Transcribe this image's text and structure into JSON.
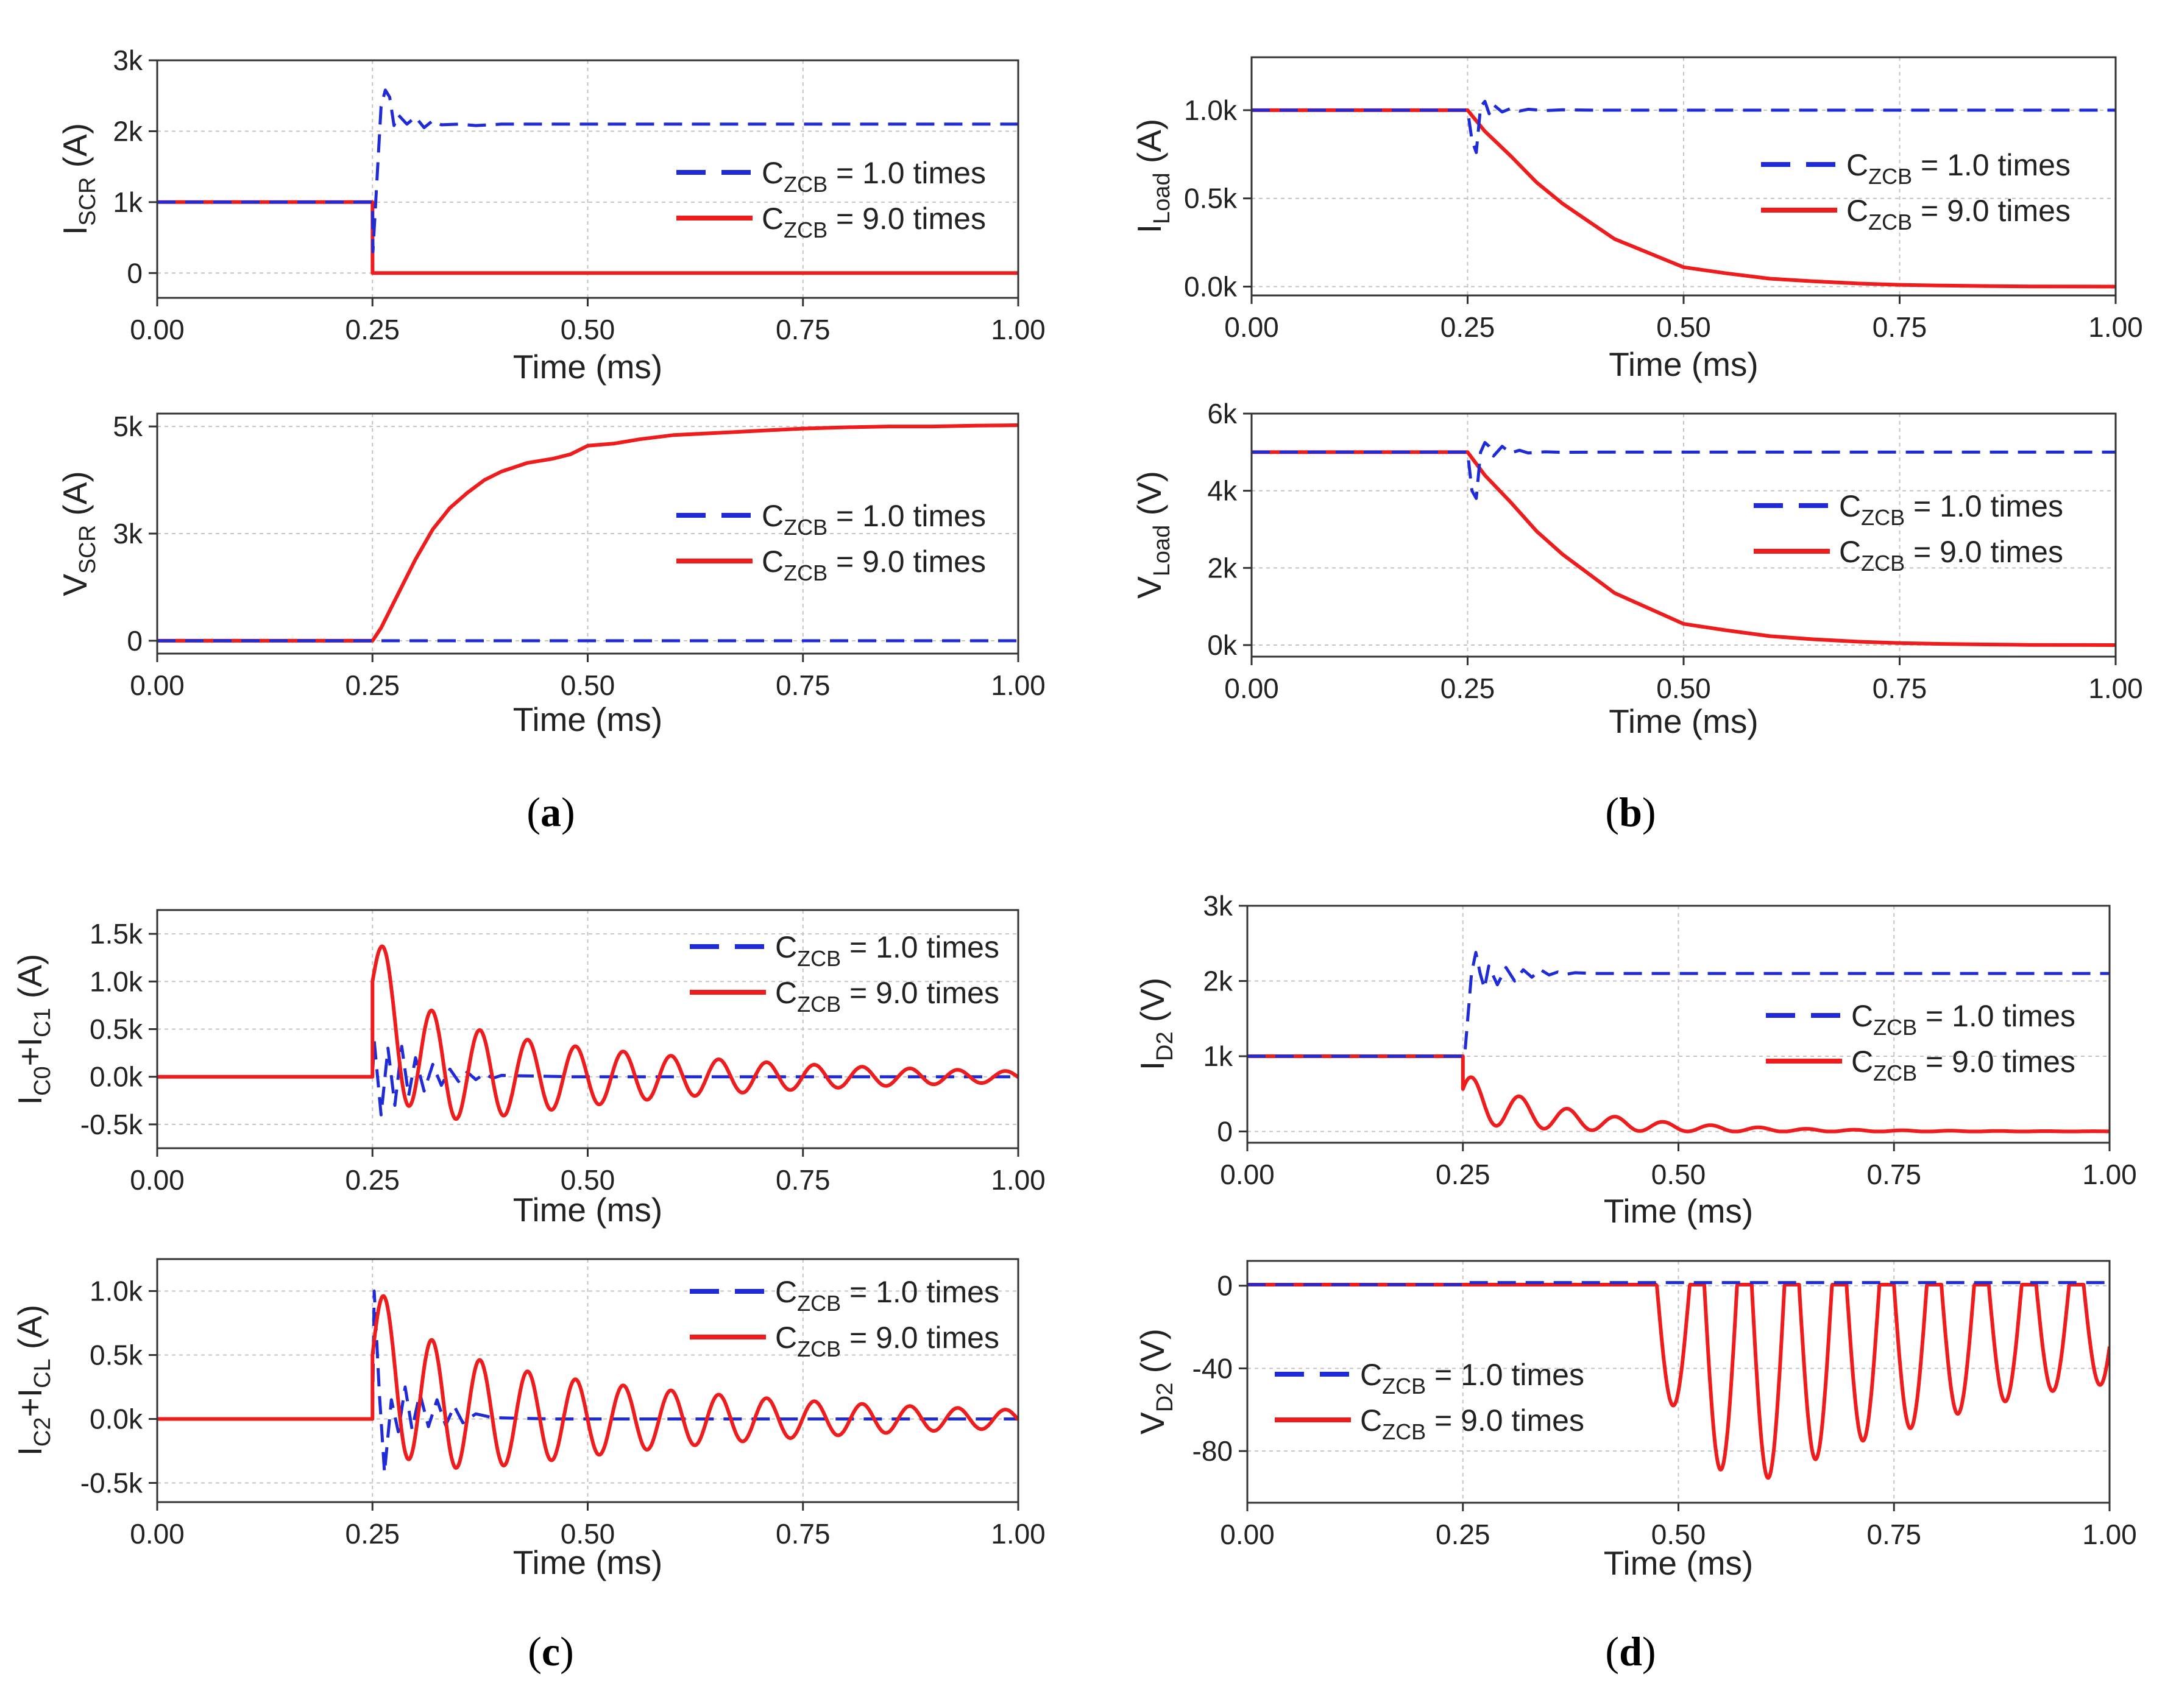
{
  "legend_text": {
    "prefix": "C",
    "subscript": "ZCB",
    "blue": " = 1.0 times",
    "red": " = 9.0 times"
  },
  "colors": {
    "blue": "#1f2bd6",
    "red": "#ee1c1c",
    "grid": "#c4c4c4",
    "axis": "#333333"
  },
  "panel_labels": [
    "a",
    "b",
    "c",
    "d"
  ],
  "chart_data": [
    {
      "type": "line",
      "panel": "a",
      "title": "",
      "xlabel": "Time (ms)",
      "ylabel": {
        "main": "I",
        "sub": "SCR",
        "suffix": " (A)"
      },
      "xlim": [
        0,
        1.0
      ],
      "ylim": [
        -350,
        3000
      ],
      "xticks": [
        0,
        0.25,
        0.5,
        0.75,
        1.0
      ],
      "xticklabels": [
        "0.00",
        "0.25",
        "0.50",
        "0.75",
        "1.00"
      ],
      "yticks": [
        0,
        1000,
        2000,
        3000
      ],
      "yticklabels": [
        "0",
        "1k",
        "2k",
        "3k"
      ],
      "legend": "right",
      "series": [
        {
          "style": "dashed",
          "color": "blue",
          "x": [
            0,
            0.25,
            0.2505,
            0.26,
            0.265,
            0.27,
            0.275,
            0.28,
            0.29,
            0.3,
            0.31,
            0.32,
            0.33,
            0.35,
            0.37,
            0.4,
            0.45,
            1.0
          ],
          "y": [
            1000,
            1000,
            300,
            2350,
            2580,
            2480,
            2080,
            2230,
            2100,
            2200,
            2050,
            2150,
            2090,
            2100,
            2080,
            2100,
            2100,
            2100
          ]
        },
        {
          "style": "solid",
          "color": "red",
          "x": [
            0,
            0.25,
            0.2501,
            1.0
          ],
          "y": [
            1000,
            1000,
            0,
            0
          ]
        }
      ]
    },
    {
      "type": "line",
      "panel": "a2",
      "title": "",
      "xlabel": "Time (ms)",
      "ylabel": {
        "main": "V",
        "sub": "SCR",
        "suffix": " (A)"
      },
      "xlim": [
        0,
        1.0
      ],
      "ylim": [
        -300,
        5300
      ],
      "xticks": [
        0,
        0.25,
        0.5,
        0.75,
        1.0
      ],
      "xticklabels": [
        "0.00",
        "0.25",
        "0.50",
        "0.75",
        "1.00"
      ],
      "yticks": [
        0,
        2500,
        5000
      ],
      "yticklabels": [
        "0",
        "3k",
        "5k"
      ],
      "legend": "right",
      "series": [
        {
          "style": "dashed",
          "color": "blue",
          "x": [
            0,
            1.0
          ],
          "y": [
            0,
            0
          ]
        },
        {
          "style": "solid",
          "color": "red",
          "x": [
            0,
            0.25,
            0.26,
            0.28,
            0.3,
            0.32,
            0.34,
            0.36,
            0.38,
            0.4,
            0.43,
            0.46,
            0.48,
            0.5,
            0.53,
            0.56,
            0.6,
            0.65,
            0.7,
            0.75,
            0.8,
            0.85,
            0.9,
            0.95,
            1.0
          ],
          "y": [
            0,
            0,
            300,
            1100,
            1900,
            2600,
            3100,
            3450,
            3750,
            3950,
            4150,
            4250,
            4350,
            4550,
            4600,
            4700,
            4800,
            4850,
            4900,
            4950,
            4980,
            5000,
            5000,
            5020,
            5030
          ]
        }
      ]
    },
    {
      "type": "line",
      "panel": "b",
      "title": "",
      "xlabel": "Time (ms)",
      "ylabel": {
        "main": "I",
        "sub": "Load",
        "suffix": " (A)"
      },
      "xlim": [
        0,
        1.0
      ],
      "ylim": [
        -50,
        1300
      ],
      "xticks": [
        0,
        0.25,
        0.5,
        0.75,
        1.0
      ],
      "xticklabels": [
        "0.00",
        "0.25",
        "0.50",
        "0.75",
        "1.00"
      ],
      "yticks": [
        0,
        500,
        1000
      ],
      "yticklabels": [
        "0.0k",
        "0.5k",
        "1.0k"
      ],
      "legend": "right",
      "series": [
        {
          "style": "dashed",
          "color": "blue",
          "x": [
            0,
            0.25,
            0.255,
            0.26,
            0.265,
            0.27,
            0.275,
            0.28,
            0.29,
            0.3,
            0.31,
            0.32,
            0.34,
            0.36,
            0.4,
            1.0
          ],
          "y": [
            1000,
            1000,
            830,
            760,
            1020,
            1050,
            980,
            1030,
            990,
            1010,
            995,
            1005,
            998,
            1002,
            1000,
            1000
          ]
        },
        {
          "style": "solid",
          "color": "red",
          "x": [
            0,
            0.25,
            0.27,
            0.3,
            0.33,
            0.36,
            0.39,
            0.42,
            0.45,
            0.48,
            0.5,
            0.55,
            0.6,
            0.65,
            0.7,
            0.75,
            0.8,
            0.85,
            0.9,
            1.0
          ],
          "y": [
            1000,
            1000,
            880,
            740,
            590,
            470,
            370,
            270,
            210,
            150,
            110,
            75,
            45,
            30,
            18,
            10,
            6,
            3,
            1,
            0
          ]
        }
      ]
    },
    {
      "type": "line",
      "panel": "b2",
      "title": "",
      "xlabel": "Time (ms)",
      "ylabel": {
        "main": "V",
        "sub": "Load",
        "suffix": " (V)"
      },
      "xlim": [
        0,
        1.0
      ],
      "ylim": [
        -300,
        6000
      ],
      "xticks": [
        0,
        0.25,
        0.5,
        0.75,
        1.0
      ],
      "xticklabels": [
        "0.00",
        "0.25",
        "0.50",
        "0.75",
        "1.00"
      ],
      "yticks": [
        0,
        2000,
        4000,
        6000
      ],
      "yticklabels": [
        "0k",
        "2k",
        "4k",
        "6k"
      ],
      "legend": "right",
      "series": [
        {
          "style": "dashed",
          "color": "blue",
          "x": [
            0,
            0.25,
            0.255,
            0.26,
            0.265,
            0.27,
            0.275,
            0.28,
            0.29,
            0.3,
            0.31,
            0.32,
            0.34,
            0.36,
            0.4,
            1.0
          ],
          "y": [
            5000,
            5000,
            4000,
            3800,
            5000,
            5250,
            5150,
            4900,
            5150,
            4980,
            5050,
            4980,
            5010,
            4995,
            5000,
            5000
          ]
        },
        {
          "style": "solid",
          "color": "red",
          "x": [
            0,
            0.25,
            0.27,
            0.3,
            0.33,
            0.36,
            0.39,
            0.42,
            0.45,
            0.48,
            0.5,
            0.55,
            0.6,
            0.65,
            0.7,
            0.75,
            0.8,
            0.85,
            0.9,
            1.0
          ],
          "y": [
            5000,
            5000,
            4400,
            3700,
            2950,
            2350,
            1850,
            1350,
            1050,
            750,
            550,
            380,
            230,
            150,
            90,
            50,
            30,
            15,
            5,
            0
          ]
        }
      ]
    },
    {
      "type": "line",
      "panel": "c",
      "title": "",
      "xlabel": "Time (ms)",
      "ylabel": {
        "main": "I",
        "sub": "C0",
        "mid": "+I",
        "sub2": "C1",
        "suffix": " (A)"
      },
      "xlim": [
        0,
        1.0
      ],
      "ylim": [
        -750,
        1750
      ],
      "xticks": [
        0,
        0.25,
        0.5,
        0.75,
        1.0
      ],
      "xticklabels": [
        "0.00",
        "0.25",
        "0.50",
        "0.75",
        "1.00"
      ],
      "yticks": [
        -500,
        0,
        500,
        1000,
        1500
      ],
      "yticklabels": [
        "-0.5k",
        "0.0k",
        "0.5k",
        "1.0k",
        "1.5k"
      ],
      "legend": "top-right",
      "series": [
        {
          "style": "dashed",
          "color": "blue",
          "x": [
            0,
            0.25,
            0.252,
            0.26,
            0.268,
            0.276,
            0.284,
            0.292,
            0.3,
            0.31,
            0.32,
            0.33,
            0.34,
            0.35,
            0.36,
            0.37,
            0.38,
            0.39,
            0.4,
            0.42,
            0.45,
            0.48,
            0.52,
            0.56,
            0.6,
            1.0
          ],
          "y": [
            0,
            0,
            380,
            -400,
            300,
            -300,
            320,
            -200,
            200,
            -150,
            130,
            -90,
            80,
            -50,
            50,
            -30,
            30,
            -15,
            15,
            10,
            5,
            0,
            0,
            0,
            0,
            0
          ]
        },
        {
          "style": "solid",
          "color": "red",
          "generator": "damped-osc",
          "t0": 0.25,
          "dc": 1000,
          "dc_tau": 0.035,
          "amp": 700,
          "amp_tau": 0.3,
          "period": 0.0555,
          "phase": 0.0
        }
      ]
    },
    {
      "type": "line",
      "panel": "c2",
      "title": "",
      "xlabel": "Time (ms)",
      "ylabel": {
        "main": "I",
        "sub": "C2",
        "mid": "+I",
        "sub2": "CL",
        "suffix": " (A)"
      },
      "xlim": [
        0,
        1.0
      ],
      "ylim": [
        -650,
        1250
      ],
      "xticks": [
        0,
        0.25,
        0.5,
        0.75,
        1.0
      ],
      "xticklabels": [
        "0.00",
        "0.25",
        "0.50",
        "0.75",
        "1.00"
      ],
      "yticks": [
        -500,
        0,
        500,
        1000
      ],
      "yticklabels": [
        "-0.5k",
        "0.0k",
        "0.5k",
        "1.0k"
      ],
      "legend": "top-right",
      "series": [
        {
          "style": "dashed",
          "color": "blue",
          "x": [
            0,
            0.25,
            0.252,
            0.258,
            0.264,
            0.272,
            0.28,
            0.288,
            0.296,
            0.305,
            0.315,
            0.325,
            0.335,
            0.345,
            0.355,
            0.37,
            0.39,
            0.42,
            0.46,
            0.5,
            1.0
          ],
          "y": [
            0,
            0,
            1000,
            200,
            -420,
            150,
            -100,
            250,
            -80,
            200,
            -60,
            150,
            -50,
            100,
            -30,
            40,
            10,
            5,
            0,
            0,
            0
          ]
        },
        {
          "style": "solid",
          "color": "red",
          "generator": "damped-osc",
          "t0": 0.25,
          "dc": 500,
          "dc_tau": 0.05,
          "amp": 600,
          "amp_tau": 0.35,
          "period": 0.0555,
          "phase": 0.0
        }
      ]
    },
    {
      "type": "line",
      "panel": "d",
      "title": "",
      "xlabel": "Time (ms)",
      "ylabel": {
        "main": "I",
        "sub": "D2",
        "suffix": " (V)"
      },
      "xlim": [
        0,
        1.0
      ],
      "ylim": [
        -150,
        3000
      ],
      "xticks": [
        0,
        0.25,
        0.5,
        0.75,
        1.0
      ],
      "xticklabels": [
        "0.00",
        "0.25",
        "0.50",
        "0.75",
        "1.00"
      ],
      "yticks": [
        0,
        1000,
        2000,
        3000
      ],
      "yticklabels": [
        "0",
        "1k",
        "2k",
        "3k"
      ],
      "legend": "right",
      "series": [
        {
          "style": "dashed",
          "color": "blue",
          "x": [
            0,
            0.25,
            0.252,
            0.26,
            0.265,
            0.27,
            0.275,
            0.28,
            0.29,
            0.3,
            0.31,
            0.32,
            0.33,
            0.34,
            0.35,
            0.36,
            0.37,
            0.38,
            0.4,
            0.45,
            1.0
          ],
          "y": [
            1000,
            1000,
            1000,
            2100,
            2380,
            2100,
            1900,
            2200,
            1950,
            2180,
            2000,
            2150,
            2050,
            2150,
            2080,
            2120,
            2090,
            2110,
            2100,
            2100,
            2100
          ]
        },
        {
          "style": "solid",
          "color": "red",
          "generator": "rectified-osc",
          "t0": 0.25,
          "dc": 450,
          "dc_tau": 0.12,
          "amp": 330,
          "amp_tau": 0.14,
          "period": 0.0555,
          "phase": 0.35
        }
      ]
    },
    {
      "type": "line",
      "panel": "d2",
      "title": "",
      "xlabel": "Time (ms)",
      "ylabel": {
        "main": "V",
        "sub": "D2",
        "suffix": " (V)"
      },
      "xlim": [
        0,
        1.0
      ],
      "ylim": [
        -105,
        12
      ],
      "xticks": [
        0,
        0.25,
        0.5,
        0.75,
        1.0
      ],
      "xticklabels": [
        "0.00",
        "0.25",
        "0.50",
        "0.75",
        "1.00"
      ],
      "yticks": [
        -80,
        -40,
        0
      ],
      "yticklabels": [
        "-80",
        "-40",
        "0"
      ],
      "legend": "left",
      "series": [
        {
          "style": "dashed",
          "color": "blue",
          "x": [
            0,
            0.25,
            0.2501,
            1.0
          ],
          "y": [
            0.5,
            0.5,
            1.5,
            1.5
          ]
        },
        {
          "style": "solid",
          "color": "red",
          "generator": "valleys",
          "starts": [
            0.475,
            0.53,
            0.585,
            0.64,
            0.695,
            0.75,
            0.805,
            0.86,
            0.915,
            0.97
          ],
          "depths": [
            -58,
            -89,
            -93,
            -84,
            -75,
            -69,
            -62,
            -56,
            -51,
            -48
          ],
          "width": 0.038
        }
      ]
    }
  ]
}
